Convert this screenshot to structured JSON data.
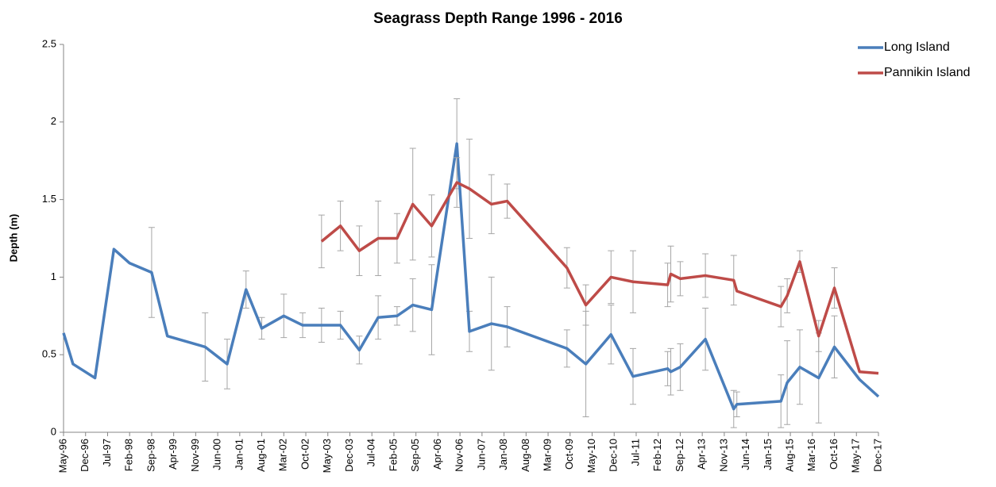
{
  "chart_data": {
    "type": "line",
    "title": "Seagrass Depth Range 1996 - 2016",
    "y_label": "Depth (m)",
    "xlim": [
      "1996-05",
      "2017-12"
    ],
    "xticks": [
      {
        "value": "1996-05",
        "label": "May-96"
      },
      {
        "value": "1996-12",
        "label": "Dec-96"
      },
      {
        "value": "1997-07",
        "label": "Jul-97"
      },
      {
        "value": "1998-02",
        "label": "Feb-98"
      },
      {
        "value": "1998-09",
        "label": "Sep-98"
      },
      {
        "value": "1999-04",
        "label": "Apr-99"
      },
      {
        "value": "1999-11",
        "label": "Nov-99"
      },
      {
        "value": "2000-06",
        "label": "Jun-00"
      },
      {
        "value": "2001-01",
        "label": "Jan-01"
      },
      {
        "value": "2001-08",
        "label": "Aug-01"
      },
      {
        "value": "2002-03",
        "label": "Mar-02"
      },
      {
        "value": "2002-10",
        "label": "Oct-02"
      },
      {
        "value": "2003-05",
        "label": "May-03"
      },
      {
        "value": "2003-12",
        "label": "Dec-03"
      },
      {
        "value": "2004-07",
        "label": "Jul-04"
      },
      {
        "value": "2005-02",
        "label": "Feb-05"
      },
      {
        "value": "2005-09",
        "label": "Sep-05"
      },
      {
        "value": "2006-04",
        "label": "Apr-06"
      },
      {
        "value": "2006-11",
        "label": "Nov-06"
      },
      {
        "value": "2007-06",
        "label": "Jun-07"
      },
      {
        "value": "2008-01",
        "label": "Jan-08"
      },
      {
        "value": "2008-08",
        "label": "Aug-08"
      },
      {
        "value": "2009-03",
        "label": "Mar-09"
      },
      {
        "value": "2009-10",
        "label": "Oct-09"
      },
      {
        "value": "2010-05",
        "label": "May-10"
      },
      {
        "value": "2010-12",
        "label": "Dec-10"
      },
      {
        "value": "2011-07",
        "label": "Jul-11"
      },
      {
        "value": "2012-02",
        "label": "Feb-12"
      },
      {
        "value": "2012-09",
        "label": "Sep-12"
      },
      {
        "value": "2013-04",
        "label": "Apr-13"
      },
      {
        "value": "2013-11",
        "label": "Nov-13"
      },
      {
        "value": "2014-06",
        "label": "Jun-14"
      },
      {
        "value": "2015-01",
        "label": "Jan-15"
      },
      {
        "value": "2015-08",
        "label": "Aug-15"
      },
      {
        "value": "2016-03",
        "label": "Mar-16"
      },
      {
        "value": "2016-10",
        "label": "Oct-16"
      },
      {
        "value": "2017-05",
        "label": "May-17"
      },
      {
        "value": "2017-12",
        "label": "Dec-17"
      }
    ],
    "ylim": [
      0,
      2.5
    ],
    "yticks": [
      0,
      0.5,
      1,
      1.5,
      2,
      2.5
    ],
    "grid": false,
    "legend": "top-right",
    "series": [
      {
        "name": "Long Island",
        "color": "#4a7ebb",
        "x": [
          "1996-05",
          "1996-08",
          "1997-03",
          "1997-09",
          "1998-02",
          "1998-09",
          "1999-02",
          "2000-02",
          "2000-09",
          "2001-03",
          "2001-08",
          "2002-03",
          "2002-09",
          "2003-03",
          "2003-09",
          "2004-03",
          "2004-09",
          "2005-03",
          "2005-08",
          "2006-02",
          "2006-10",
          "2007-02",
          "2007-09",
          "2008-02",
          "2009-09",
          "2010-03",
          "2010-11",
          "2011-06",
          "2012-05",
          "2012-06",
          "2012-09",
          "2013-05",
          "2014-02",
          "2014-03",
          "2015-05",
          "2015-07",
          "2015-11",
          "2016-05",
          "2016-10",
          "2017-06",
          "2017-12"
        ],
        "values": [
          0.64,
          0.44,
          0.35,
          1.18,
          1.09,
          1.03,
          0.62,
          0.55,
          0.44,
          0.92,
          0.67,
          0.75,
          0.69,
          0.69,
          0.69,
          0.53,
          0.74,
          0.75,
          0.82,
          0.79,
          1.86,
          0.65,
          0.7,
          0.68,
          0.54,
          0.44,
          0.63,
          0.36,
          0.41,
          0.39,
          0.42,
          0.6,
          0.15,
          0.18,
          0.2,
          0.32,
          0.42,
          0.35,
          0.55,
          0.34,
          0.23
        ],
        "errors": [
          null,
          null,
          null,
          null,
          null,
          0.29,
          null,
          0.22,
          0.16,
          0.12,
          0.07,
          0.14,
          0.08,
          0.11,
          0.09,
          0.09,
          0.14,
          0.06,
          0.17,
          0.29,
          0.29,
          0.13,
          0.3,
          0.13,
          0.12,
          0.34,
          0.19,
          0.18,
          0.11,
          0.15,
          0.15,
          0.2,
          0.12,
          0.08,
          0.17,
          0.27,
          0.24,
          0.29,
          0.2,
          null,
          null
        ]
      },
      {
        "name": "Pannikin Island",
        "color": "#be4b48",
        "x": [
          "2003-03",
          "2003-09",
          "2004-03",
          "2004-09",
          "2005-03",
          "2005-08",
          "2006-02",
          "2006-10",
          "2007-02",
          "2007-09",
          "2008-02",
          "2009-09",
          "2010-03",
          "2010-11",
          "2011-06",
          "2012-05",
          "2012-06",
          "2012-09",
          "2013-05",
          "2014-02",
          "2014-03",
          "2015-05",
          "2015-07",
          "2015-11",
          "2016-05",
          "2016-10",
          "2017-06",
          "2017-12"
        ],
        "values": [
          1.23,
          1.33,
          1.17,
          1.25,
          1.25,
          1.47,
          1.33,
          1.61,
          1.57,
          1.47,
          1.49,
          1.06,
          0.82,
          1.0,
          0.97,
          0.95,
          1.02,
          0.99,
          1.01,
          0.98,
          0.91,
          0.81,
          0.88,
          1.1,
          0.62,
          0.93,
          0.39,
          0.38
        ],
        "errors": [
          0.17,
          0.16,
          0.16,
          0.24,
          0.16,
          0.36,
          0.2,
          0.16,
          0.32,
          0.19,
          0.11,
          0.13,
          0.13,
          0.17,
          0.2,
          0.14,
          0.18,
          0.11,
          0.14,
          0.16,
          null,
          0.13,
          0.11,
          0.07,
          0.1,
          0.13,
          null,
          null
        ]
      }
    ]
  }
}
